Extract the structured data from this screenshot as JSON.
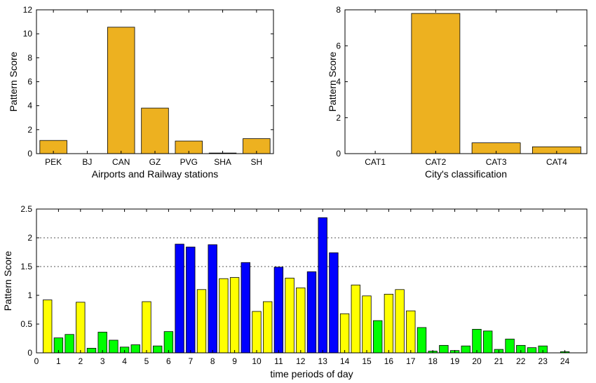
{
  "chart_data": [
    {
      "type": "bar",
      "xlabel": "Airports and Railway stations",
      "ylabel": "Pattern Score",
      "categories": [
        "PEK",
        "BJ",
        "CAN",
        "GZ",
        "PVG",
        "SHA",
        "SH"
      ],
      "values": [
        1.1,
        0.0,
        10.55,
        3.8,
        1.05,
        0.05,
        1.25
      ],
      "ylim": [
        0,
        12
      ],
      "yticks": [
        "0",
        "2",
        "4",
        "6",
        "8",
        "10",
        "12"
      ],
      "bar_color": "#edb120"
    },
    {
      "type": "bar",
      "xlabel": "City's classification",
      "ylabel": "Pattern Score",
      "categories": [
        "CAT1",
        "CAT2",
        "CAT3",
        "CAT4"
      ],
      "values": [
        0.0,
        7.8,
        0.6,
        0.38
      ],
      "ylim": [
        0,
        8
      ],
      "yticks": [
        "0",
        "2",
        "4",
        "6",
        "8"
      ],
      "bar_color": "#edb120"
    },
    {
      "type": "bar",
      "xlabel": "time periods of day",
      "ylabel": "Pattern Score",
      "xlim": [
        0,
        25
      ],
      "ylim": [
        0,
        2.5
      ],
      "yticks": [
        "0",
        "0.5",
        "1",
        "1.5",
        "2",
        "2.5"
      ],
      "xticks": [
        "0",
        "1",
        "2",
        "3",
        "4",
        "5",
        "6",
        "7",
        "8",
        "9",
        "10",
        "11",
        "12",
        "13",
        "14",
        "15",
        "16",
        "17",
        "18",
        "19",
        "20",
        "21",
        "22",
        "23",
        "24"
      ],
      "reference_lines": [
        1.5,
        2.0
      ],
      "colors": {
        "yellow": "#ffff00",
        "green": "#00ff00",
        "blue": "#0000ff"
      },
      "bars": [
        {
          "x": 0.5,
          "value": 0.92,
          "color": "yellow"
        },
        {
          "x": 1.0,
          "value": 0.26,
          "color": "green"
        },
        {
          "x": 1.5,
          "value": 0.32,
          "color": "green"
        },
        {
          "x": 2.0,
          "value": 0.88,
          "color": "yellow"
        },
        {
          "x": 2.5,
          "value": 0.08,
          "color": "green"
        },
        {
          "x": 3.0,
          "value": 0.36,
          "color": "green"
        },
        {
          "x": 3.5,
          "value": 0.22,
          "color": "green"
        },
        {
          "x": 4.0,
          "value": 0.1,
          "color": "green"
        },
        {
          "x": 4.5,
          "value": 0.14,
          "color": "green"
        },
        {
          "x": 5.0,
          "value": 0.89,
          "color": "yellow"
        },
        {
          "x": 5.5,
          "value": 0.12,
          "color": "green"
        },
        {
          "x": 6.0,
          "value": 0.37,
          "color": "green"
        },
        {
          "x": 6.5,
          "value": 1.89,
          "color": "blue"
        },
        {
          "x": 7.0,
          "value": 1.84,
          "color": "blue"
        },
        {
          "x": 7.5,
          "value": 1.1,
          "color": "yellow"
        },
        {
          "x": 8.0,
          "value": 1.88,
          "color": "blue"
        },
        {
          "x": 8.5,
          "value": 1.29,
          "color": "yellow"
        },
        {
          "x": 9.0,
          "value": 1.31,
          "color": "yellow"
        },
        {
          "x": 9.5,
          "value": 1.57,
          "color": "blue"
        },
        {
          "x": 10.0,
          "value": 0.72,
          "color": "yellow"
        },
        {
          "x": 10.5,
          "value": 0.89,
          "color": "yellow"
        },
        {
          "x": 11.0,
          "value": 1.49,
          "color": "blue"
        },
        {
          "x": 11.5,
          "value": 1.3,
          "color": "yellow"
        },
        {
          "x": 12.0,
          "value": 1.13,
          "color": "yellow"
        },
        {
          "x": 12.5,
          "value": 1.41,
          "color": "blue"
        },
        {
          "x": 13.0,
          "value": 2.35,
          "color": "blue"
        },
        {
          "x": 13.5,
          "value": 1.74,
          "color": "blue"
        },
        {
          "x": 14.0,
          "value": 0.68,
          "color": "yellow"
        },
        {
          "x": 14.5,
          "value": 1.18,
          "color": "yellow"
        },
        {
          "x": 15.0,
          "value": 0.99,
          "color": "yellow"
        },
        {
          "x": 15.5,
          "value": 0.56,
          "color": "green"
        },
        {
          "x": 16.0,
          "value": 1.02,
          "color": "yellow"
        },
        {
          "x": 16.5,
          "value": 1.1,
          "color": "yellow"
        },
        {
          "x": 17.0,
          "value": 0.73,
          "color": "yellow"
        },
        {
          "x": 17.5,
          "value": 0.44,
          "color": "green"
        },
        {
          "x": 18.0,
          "value": 0.03,
          "color": "green"
        },
        {
          "x": 18.5,
          "value": 0.13,
          "color": "green"
        },
        {
          "x": 19.0,
          "value": 0.04,
          "color": "green"
        },
        {
          "x": 19.5,
          "value": 0.12,
          "color": "green"
        },
        {
          "x": 20.0,
          "value": 0.41,
          "color": "green"
        },
        {
          "x": 20.5,
          "value": 0.38,
          "color": "green"
        },
        {
          "x": 21.0,
          "value": 0.06,
          "color": "green"
        },
        {
          "x": 21.5,
          "value": 0.24,
          "color": "green"
        },
        {
          "x": 22.0,
          "value": 0.13,
          "color": "green"
        },
        {
          "x": 22.5,
          "value": 0.09,
          "color": "green"
        },
        {
          "x": 23.0,
          "value": 0.12,
          "color": "green"
        },
        {
          "x": 24.0,
          "value": 0.02,
          "color": "green"
        }
      ]
    }
  ]
}
